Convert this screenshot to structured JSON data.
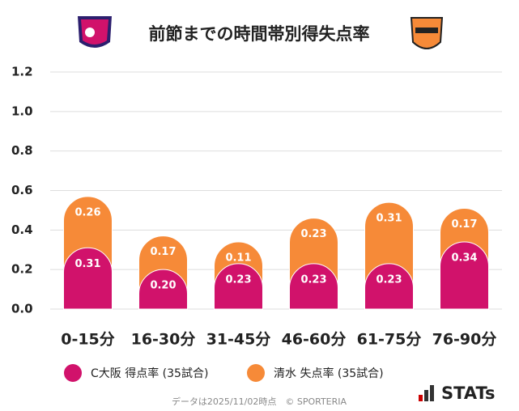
{
  "chart_data": {
    "type": "stacked_bar",
    "title": "前節までの時間帯別得失点率",
    "categories": [
      "0-15分",
      "16-30分",
      "31-45分",
      "46-60分",
      "61-75分",
      "76-90分"
    ],
    "series": [
      {
        "name": "C大阪 得点率 (35試合)",
        "color": "#d1126b",
        "values": [
          0.31,
          0.2,
          0.23,
          0.23,
          0.23,
          0.34
        ],
        "value_labels": [
          "0.31",
          "0.20",
          "0.23",
          "0.23",
          "0.23",
          "0.34"
        ]
      },
      {
        "name": "清水 失点率 (35試合)",
        "color": "#f68a38",
        "values": [
          0.26,
          0.17,
          0.11,
          0.23,
          0.31,
          0.17
        ],
        "value_labels": [
          "0.26",
          "0.17",
          "0.11",
          "0.23",
          "0.31",
          "0.17"
        ]
      }
    ],
    "ylim": [
      0,
      1.2
    ],
    "yticks": [
      {
        "value": 0,
        "label": "0.0"
      },
      0.2,
      0.4,
      0.6,
      0.8,
      {
        "value": 1,
        "label": "1.0"
      },
      1.2
    ],
    "grid": true,
    "source": "データは2025/11/02時点　© SPORTERIA",
    "brand": "STATs"
  }
}
